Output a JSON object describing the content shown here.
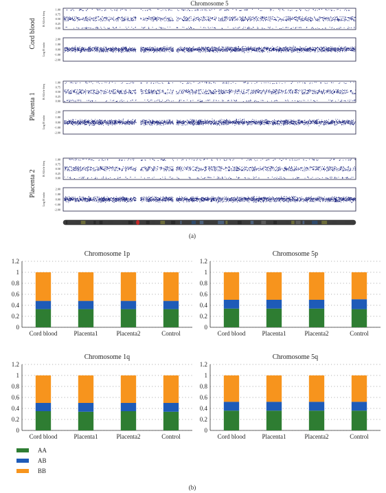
{
  "panel_a": {
    "title": "Chromosome 5",
    "caption": "(a)",
    "baf_label": "B Allele freq",
    "lrr_label": "Log R ratio",
    "baf_ticks": [
      "1.00",
      "0.75",
      "0.50",
      "0.25",
      "0.00"
    ],
    "lrr_ticks": [
      "2.00",
      "1.00",
      "0.00",
      "-1.00",
      "-2.00"
    ],
    "samples": [
      "Cord blood",
      "Placenta 1",
      "Placenta 2"
    ],
    "colors": {
      "points": "#1a237e",
      "ideogram": "#3b3b3b",
      "centromere": "#c62828"
    }
  },
  "panel_b": {
    "caption": "(b)",
    "legend": [
      {
        "name": "AA",
        "color": "#2e7d32"
      },
      {
        "name": "AB",
        "color": "#1e5bb8"
      },
      {
        "name": "BB",
        "color": "#f7941d"
      }
    ],
    "y_ticks": [
      "0",
      "0.2",
      "0.4",
      "0.6",
      "0.8",
      "1",
      "1.2"
    ]
  },
  "chart_data": [
    {
      "type": "bar",
      "title": "Chromosome 1p",
      "categories": [
        "Cord blood",
        "Placenta1",
        "Placenta2",
        "Control"
      ],
      "series": [
        {
          "name": "AA",
          "values": [
            0.33,
            0.33,
            0.33,
            0.33
          ]
        },
        {
          "name": "AB",
          "values": [
            0.15,
            0.15,
            0.15,
            0.15
          ]
        },
        {
          "name": "BB",
          "values": [
            0.52,
            0.52,
            0.52,
            0.52
          ]
        }
      ],
      "ylim": [
        0,
        1.2
      ],
      "stacked": true,
      "grid": true
    },
    {
      "type": "bar",
      "title": "Chromosome 5p",
      "categories": [
        "Cord blood",
        "Placenta1",
        "Placenta2",
        "Control"
      ],
      "series": [
        {
          "name": "AA",
          "values": [
            0.34,
            0.34,
            0.34,
            0.33
          ]
        },
        {
          "name": "AB",
          "values": [
            0.16,
            0.16,
            0.16,
            0.18
          ]
        },
        {
          "name": "BB",
          "values": [
            0.5,
            0.5,
            0.5,
            0.49
          ]
        }
      ],
      "ylim": [
        0,
        1.2
      ],
      "stacked": true,
      "grid": true
    },
    {
      "type": "bar",
      "title": "Chromosome 1q",
      "categories": [
        "Cord blood",
        "Placenta1",
        "Placenta2",
        "Control"
      ],
      "series": [
        {
          "name": "AA",
          "values": [
            0.35,
            0.34,
            0.35,
            0.34
          ]
        },
        {
          "name": "AB",
          "values": [
            0.15,
            0.16,
            0.15,
            0.16
          ]
        },
        {
          "name": "BB",
          "values": [
            0.5,
            0.5,
            0.5,
            0.5
          ]
        }
      ],
      "ylim": [
        0,
        1.2
      ],
      "stacked": true,
      "grid": true
    },
    {
      "type": "bar",
      "title": "Chromosome 5q",
      "categories": [
        "Cord blood",
        "Placenta1",
        "Placenta2",
        "Control"
      ],
      "series": [
        {
          "name": "AA",
          "values": [
            0.36,
            0.36,
            0.36,
            0.36
          ]
        },
        {
          "name": "AB",
          "values": [
            0.16,
            0.16,
            0.16,
            0.16
          ]
        },
        {
          "name": "BB",
          "values": [
            0.48,
            0.48,
            0.48,
            0.48
          ]
        }
      ],
      "ylim": [
        0,
        1.2
      ],
      "stacked": true,
      "grid": true
    }
  ]
}
